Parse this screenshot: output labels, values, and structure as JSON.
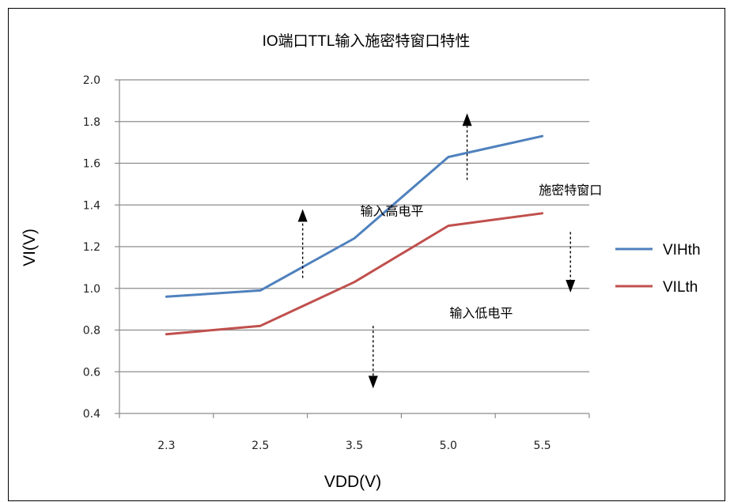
{
  "chart_data": {
    "type": "line",
    "title": "IO端口TTL输入施密特窗口特性",
    "xlabel": "VDD(V)",
    "ylabel": "VI(V)",
    "categories": [
      "2.3",
      "2.5",
      "3.5",
      "5.0",
      "5.5"
    ],
    "ylim": [
      0.4,
      2.0
    ],
    "yticks": [
      "0.4",
      "0.6",
      "0.8",
      "1.0",
      "1.2",
      "1.4",
      "1.6",
      "1.8",
      "2.0"
    ],
    "grid": true,
    "legend_position": "right",
    "series": [
      {
        "name": "VIHth",
        "color": "#4f81bd",
        "values": [
          0.96,
          0.99,
          1.24,
          1.63,
          1.73
        ]
      },
      {
        "name": "VILth",
        "color": "#c0504d",
        "values": [
          0.78,
          0.82,
          1.03,
          1.3,
          1.36
        ]
      }
    ],
    "annotations": [
      {
        "id": "high",
        "text": "输入高电平",
        "x": 2.4,
        "y": 1.35
      },
      {
        "id": "window",
        "text": "施密特窗口",
        "x": 4.3,
        "y": 1.45
      },
      {
        "id": "low",
        "text": "输入低电平",
        "x": 3.35,
        "y": 0.86
      }
    ],
    "arrows": [
      {
        "id": "up-left",
        "direction": "up",
        "x": 1.45,
        "y_from": 1.05,
        "y_to": 1.38
      },
      {
        "id": "up-right",
        "direction": "up",
        "x": 3.2,
        "y_from": 1.52,
        "y_to": 1.84
      },
      {
        "id": "down-right",
        "direction": "down",
        "x": 4.3,
        "y_from": 1.27,
        "y_to": 0.98
      },
      {
        "id": "down-left",
        "direction": "down",
        "x": 2.2,
        "y_from": 0.82,
        "y_to": 0.52
      }
    ]
  }
}
